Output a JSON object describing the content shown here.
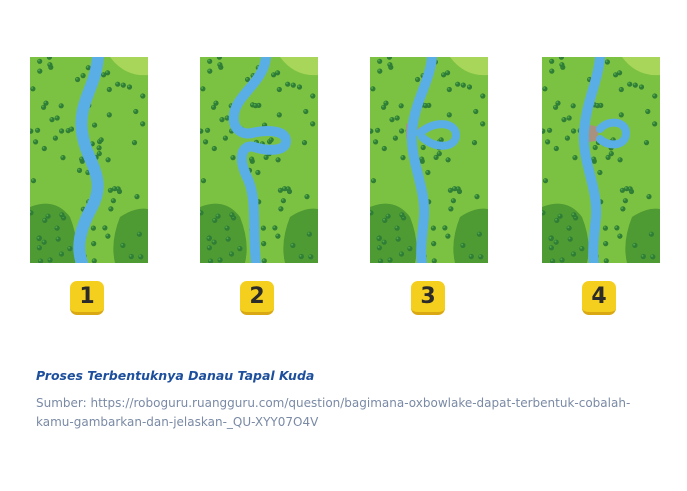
{
  "diagram": {
    "stages": [
      {
        "label": "1"
      },
      {
        "label": "2"
      },
      {
        "label": "3"
      },
      {
        "label": "4"
      }
    ],
    "colors": {
      "grass": "#7cc242",
      "dark_grass": "#4e9a33",
      "light_grass": "#a8d65a",
      "tree": "#2f7d36",
      "tree_highlight": "#4fa84a",
      "river": "#5aaee6",
      "sediment": "#a8917f",
      "badge": "#f5cf1d"
    }
  },
  "caption": {
    "title": "Proses Terbentuknya Danau Tapal Kuda",
    "source": "Sumber: https://roboguru.ruangguru.com/question/bagimana-oxbowlake-dapat-terbentuk-cobalah-kamu-gambarkan-dan-jelaskan-_QU-XYY07O4V"
  }
}
